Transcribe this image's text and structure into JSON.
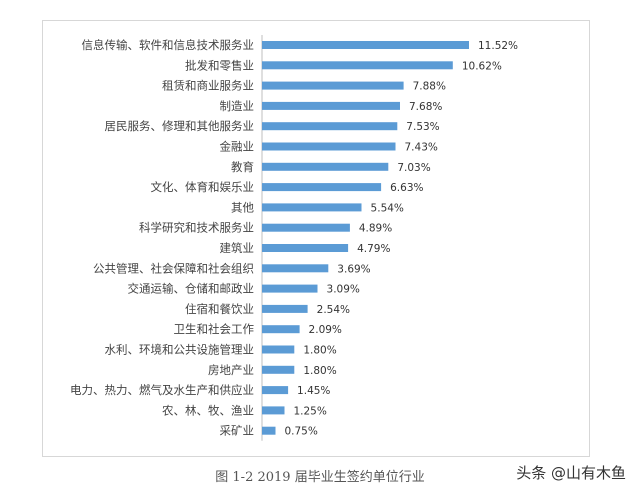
{
  "chart_data": {
    "type": "bar",
    "orientation": "horizontal",
    "title": "",
    "caption": "图 1-2 2019 届毕业生签约单位行业",
    "bar_color": "#5b9bd5",
    "categories": [
      "信息传输、软件和信息技术服务业",
      "批发和零售业",
      "租赁和商业服务业",
      "制造业",
      "居民服务、修理和其他服务业",
      "金融业",
      "教育",
      "文化、体育和娱乐业",
      "其他",
      "科学研究和技术服务业",
      "建筑业",
      "公共管理、社会保障和社会组织",
      "交通运输、仓储和邮政业",
      "住宿和餐饮业",
      "卫生和社会工作",
      "水利、环境和公共设施管理业",
      "房地产业",
      "电力、热力、燃气及水生产和供应业",
      "农、林、牧、渔业",
      "采矿业"
    ],
    "values": [
      11.52,
      10.62,
      7.88,
      7.68,
      7.53,
      7.43,
      7.03,
      6.63,
      5.54,
      4.89,
      4.79,
      3.69,
      3.09,
      2.54,
      2.09,
      1.8,
      1.8,
      1.45,
      1.25,
      0.75
    ],
    "value_labels": [
      "11.52%",
      "10.62%",
      "7.88%",
      "7.68%",
      "7.53%",
      "7.43%",
      "7.03%",
      "6.63%",
      "5.54%",
      "4.89%",
      "4.79%",
      "3.69%",
      "3.09%",
      "2.54%",
      "2.09%",
      "1.80%",
      "1.80%",
      "1.45%",
      "1.25%",
      "0.75%"
    ],
    "unit": "%",
    "legend": "none",
    "grid": false
  },
  "watermark": "头条 @山有木鱼"
}
